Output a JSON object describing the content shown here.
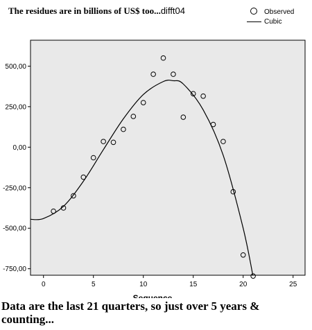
{
  "heading": {
    "text": "The residues are in billions of US$ too...",
    "tag": "difft04"
  },
  "legend": {
    "observed": "Observed",
    "cubic": "Cubic"
  },
  "caption": "Data are the last 21 quarters, so just over 5 years & counting...",
  "chart_data": {
    "type": "scatter",
    "title": "",
    "xlabel": "Sequence",
    "ylabel": "",
    "xlim": [
      -1.3,
      26.2
    ],
    "ylim": [
      -790,
      660
    ],
    "xticks": [
      0,
      5,
      10,
      15,
      20,
      25
    ],
    "yticks": [
      500,
      250,
      0,
      -250,
      -500,
      -750
    ],
    "ytick_labels": [
      "500,00",
      "250,00",
      "0,00",
      "-250,00",
      "-500,00",
      "-750,00"
    ],
    "grid": false,
    "legend_position": "top-right",
    "plot_background": "#e9e9e9",
    "series": [
      {
        "name": "Observed",
        "marker": "open-circle",
        "x": [
          1,
          2,
          3,
          4,
          5,
          6,
          7,
          8,
          9,
          10,
          11,
          12,
          13,
          14,
          15,
          16,
          17,
          18,
          19,
          20,
          21
        ],
        "y": [
          -395,
          -375,
          -300,
          -185,
          -65,
          35,
          30,
          110,
          190,
          275,
          450,
          550,
          450,
          185,
          330,
          315,
          140,
          35,
          -275,
          -665,
          -795
        ]
      },
      {
        "name": "Cubic",
        "type": "line",
        "x": [
          -1.3,
          0,
          2,
          4,
          6,
          8,
          10,
          12,
          13,
          14,
          16,
          18,
          20,
          21
        ],
        "y": [
          -445,
          -440,
          -365,
          -210,
          -15,
          175,
          325,
          405,
          410,
          390,
          230,
          -50,
          -500,
          -800
        ]
      }
    ]
  }
}
